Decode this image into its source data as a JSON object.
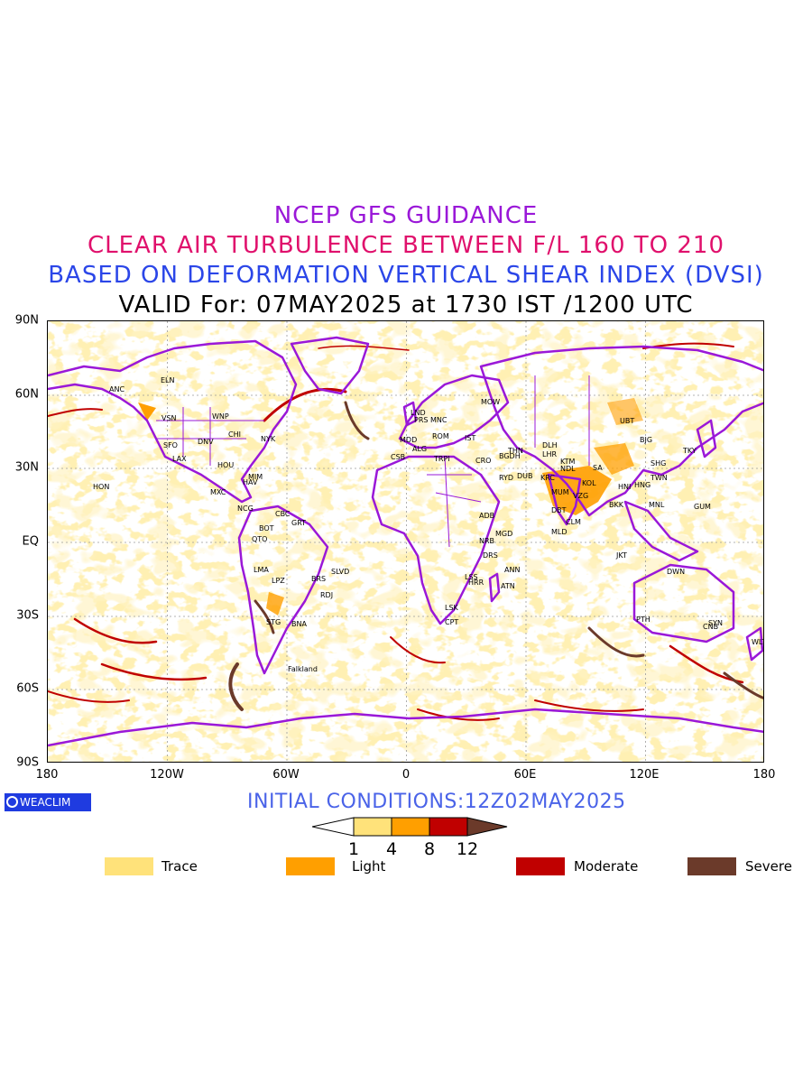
{
  "titles": {
    "line1": "NCEP GFS GUIDANCE",
    "line2": "CLEAR AIR TURBULENCE BETWEEN F/L 160 TO 210",
    "line3": "BASED ON DEFORMATION VERTICAL SHEAR INDEX (DVSI)",
    "line4": "VALID For: 07MAY2025 at 1730 IST /1200 UTC"
  },
  "axes": {
    "lat_labels": [
      "90N",
      "60N",
      "30N",
      "EQ",
      "30S",
      "60S",
      "90S"
    ],
    "lon_labels": [
      "180",
      "120W",
      "60W",
      "0",
      "60E",
      "120E",
      "180"
    ]
  },
  "logo": {
    "text": "WEACLIM"
  },
  "initial_conditions": "INITIAL CONDITIONS:12Z02MAY2025",
  "colorbar": {
    "thresholds": [
      "1",
      "4",
      "8",
      "12"
    ],
    "colors": [
      "#ffffff",
      "#ffe27a",
      "#ff9f00",
      "#c00000",
      "#6b3a2a"
    ]
  },
  "legend": [
    {
      "label": "Trace",
      "color": "#ffe27a"
    },
    {
      "label": "Light",
      "color": "#ff9f00"
    },
    {
      "label": "Moderate",
      "color": "#c00000"
    },
    {
      "label": "Severe",
      "color": "#6b3a2a"
    }
  ],
  "map": {
    "coastline_color": "#9a18d8",
    "stations": [
      "ANC",
      "ELN",
      "VSN",
      "WNP",
      "SFO",
      "DNV",
      "CHI",
      "NYK",
      "LAX",
      "HOU",
      "MIM",
      "HAV",
      "MXC",
      "NCG",
      "CBC",
      "GRT",
      "BOT",
      "QTO",
      "LMA",
      "LPZ",
      "BRS",
      "SLVD",
      "RDJ",
      "STG",
      "BNA",
      "Falkland",
      "HON",
      "MOW",
      "LND",
      "PRS",
      "MNC",
      "ROM",
      "IST",
      "MDD",
      "ALG",
      "CSB",
      "TRPI",
      "CRO",
      "BGDH",
      "THN",
      "DUB",
      "KRC",
      "DLH",
      "LHR",
      "KTM",
      "NDL",
      "MUM",
      "VZG",
      "KOL",
      "DBT",
      "CLM",
      "MLD",
      "ADB",
      "MGD",
      "NRB",
      "DRS",
      "ANN",
      "LSS",
      "HRR",
      "ATN",
      "LSK",
      "CPT",
      "UBT",
      "BJG",
      "SHG",
      "TKY",
      "TWN",
      "HNG",
      "HNI",
      "BKK",
      "MNL",
      "GUM",
      "JKT",
      "DWN",
      "PTH",
      "SYN",
      "CNB",
      "WLT",
      "RYD",
      "SA"
    ]
  }
}
